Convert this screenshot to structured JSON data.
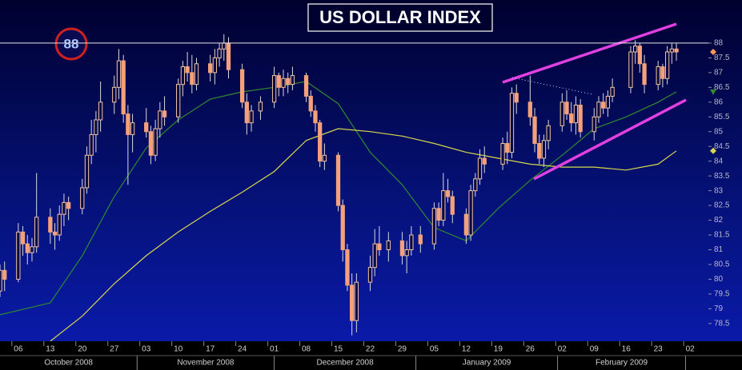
{
  "chart_data": {
    "type": "candlestick",
    "title": "US DOLLAR INDEX",
    "annotation": "88",
    "reference_line": 88,
    "up_color": "#f3c4a4",
    "down_color": "#f4a07a",
    "wick_color": "#d8d8d8",
    "last_marker_color": "#ff9955",
    "x": [
      "2008-10-01",
      "2008-10-02",
      "2008-10-03",
      "2008-10-06",
      "2008-10-07",
      "2008-10-08",
      "2008-10-09",
      "2008-10-10",
      "2008-10-13",
      "2008-10-14",
      "2008-10-15",
      "2008-10-16",
      "2008-10-17",
      "2008-10-20",
      "2008-10-21",
      "2008-10-22",
      "2008-10-23",
      "2008-10-24",
      "2008-10-27",
      "2008-10-28",
      "2008-10-29",
      "2008-10-30",
      "2008-10-31",
      "2008-11-03",
      "2008-11-04",
      "2008-11-05",
      "2008-11-06",
      "2008-11-07",
      "2008-11-10",
      "2008-11-11",
      "2008-11-12",
      "2008-11-13",
      "2008-11-14",
      "2008-11-17",
      "2008-11-18",
      "2008-11-19",
      "2008-11-20",
      "2008-11-21",
      "2008-11-24",
      "2008-11-25",
      "2008-11-26",
      "2008-11-28",
      "2008-12-01",
      "2008-12-02",
      "2008-12-03",
      "2008-12-04",
      "2008-12-05",
      "2008-12-08",
      "2008-12-09",
      "2008-12-10",
      "2008-12-11",
      "2008-12-12",
      "2008-12-15",
      "2008-12-16",
      "2008-12-17",
      "2008-12-18",
      "2008-12-19",
      "2008-12-22",
      "2008-12-23",
      "2008-12-24",
      "2008-12-26",
      "2008-12-29",
      "2008-12-30",
      "2008-12-31",
      "2009-01-02",
      "2009-01-05",
      "2009-01-06",
      "2009-01-07",
      "2009-01-08",
      "2009-01-09",
      "2009-01-12",
      "2009-01-13",
      "2009-01-14",
      "2009-01-15",
      "2009-01-16",
      "2009-01-20",
      "2009-01-21",
      "2009-01-22",
      "2009-01-23",
      "2009-01-26",
      "2009-01-27",
      "2009-01-28",
      "2009-01-29",
      "2009-01-30",
      "2009-02-02",
      "2009-02-03",
      "2009-02-04",
      "2009-02-05",
      "2009-02-06",
      "2009-02-09",
      "2009-02-10",
      "2009-02-11",
      "2009-02-12",
      "2009-02-13",
      "2009-02-17",
      "2009-02-18",
      "2009-02-19",
      "2009-02-20",
      "2009-02-23",
      "2009-02-24",
      "2009-02-25",
      "2009-02-26",
      "2009-02-27"
    ],
    "open": [
      79.2,
      79.6,
      80.3,
      80.0,
      81.6,
      81.2,
      80.9,
      81.1,
      82.1,
      81.6,
      81.5,
      82.2,
      82.6,
      82.4,
      83.1,
      84.2,
      84.9,
      85.4,
      86.0,
      86.5,
      87.4,
      85.6,
      84.9,
      85.3,
      85.0,
      84.2,
      85.1,
      85.7,
      85.5,
      86.6,
      87.2,
      87.0,
      86.6,
      87.3,
      87.0,
      87.5,
      87.8,
      88.0,
      87.1,
      86.0,
      85.3,
      85.7,
      86.0,
      86.9,
      86.5,
      86.8,
      86.6,
      86.9,
      86.2,
      85.7,
      85.3,
      84.0,
      84.2,
      82.5,
      81.0,
      79.8,
      78.6,
      79.9,
      80.4,
      81.2,
      81.0,
      81.3,
      80.8,
      81.0,
      81.5,
      81.2,
      82.4,
      82.0,
      83.0,
      82.8,
      82.2,
      81.5,
      83.0,
      83.4,
      84.1,
      83.9,
      84.6,
      84.3,
      86.3,
      86.0,
      85.5,
      84.6,
      84.1,
      84.7,
      85.2,
      86.0,
      85.6,
      85.3,
      85.9,
      85.0,
      85.5,
      86.0,
      85.8,
      86.2,
      86.5,
      87.7,
      87.9,
      87.3,
      86.6,
      87.2,
      86.8,
      87.7,
      87.8
    ],
    "high": [
      79.9,
      80.5,
      80.6,
      81.9,
      81.8,
      81.5,
      81.4,
      83.6,
      82.4,
      81.9,
      82.5,
      82.9,
      82.8,
      83.4,
      84.5,
      85.4,
      85.7,
      86.7,
      86.9,
      87.8,
      87.6,
      85.9,
      85.6,
      85.8,
      85.2,
      85.4,
      86.0,
      86.2,
      86.8,
      87.4,
      87.7,
      87.6,
      87.5,
      87.6,
      87.8,
      88.0,
      88.3,
      88.2,
      87.3,
      86.3,
      85.9,
      86.2,
      87.2,
      87.0,
      87.1,
      87.0,
      87.2,
      87.0,
      86.4,
      85.9,
      85.4,
      84.6,
      84.3,
      82.7,
      81.2,
      80.2,
      80.2,
      80.8,
      81.7,
      81.8,
      81.6,
      81.6,
      81.3,
      81.8,
      81.8,
      82.6,
      82.6,
      83.6,
      83.4,
      83.0,
      82.4,
      83.2,
      83.6,
      84.4,
      84.5,
      84.8,
      85.0,
      86.5,
      86.6,
      86.9,
      85.8,
      84.9,
      84.9,
      85.4,
      86.3,
      86.4,
      86.0,
      86.2,
      86.1,
      85.8,
      86.2,
      86.3,
      86.4,
      86.8,
      87.9,
      88.1,
      88.0,
      87.6,
      87.4,
      87.3,
      87.9,
      88.0,
      88.0
    ],
    "low": [
      79.0,
      79.4,
      79.6,
      79.9,
      80.8,
      80.5,
      80.6,
      80.9,
      81.2,
      81.0,
      81.3,
      81.8,
      82.0,
      82.2,
      82.9,
      83.9,
      84.3,
      85.0,
      85.6,
      86.1,
      85.3,
      83.2,
      84.3,
      84.8,
      83.9,
      84.0,
      84.8,
      85.2,
      85.3,
      86.2,
      86.7,
      86.3,
      86.4,
      86.7,
      86.6,
      87.2,
      87.4,
      86.8,
      85.8,
      84.9,
      85.0,
      85.4,
      85.8,
      86.2,
      86.2,
      86.3,
      86.4,
      86.0,
      85.5,
      85.0,
      83.8,
      83.7,
      82.3,
      80.6,
      79.6,
      78.1,
      78.2,
      79.6,
      80.1,
      80.8,
      80.6,
      80.5,
      80.2,
      80.8,
      80.9,
      81.0,
      81.8,
      81.8,
      82.6,
      81.9,
      81.2,
      81.3,
      82.8,
      83.2,
      83.6,
      83.7,
      83.9,
      84.1,
      85.6,
      85.2,
      84.3,
      83.9,
      83.8,
      84.4,
      85.0,
      85.4,
      85.0,
      84.9,
      84.8,
      84.7,
      85.3,
      85.6,
      85.5,
      86.0,
      86.3,
      87.3,
      87.0,
      86.3,
      86.4,
      86.5,
      86.6,
      87.3,
      87.4
    ],
    "close": [
      79.6,
      80.3,
      80.0,
      81.6,
      81.2,
      80.9,
      81.1,
      82.1,
      81.6,
      81.5,
      82.2,
      82.6,
      82.4,
      83.1,
      84.2,
      84.9,
      85.4,
      86.0,
      86.5,
      87.4,
      85.6,
      84.9,
      85.3,
      85.0,
      84.2,
      85.1,
      85.7,
      85.5,
      86.6,
      87.2,
      87.0,
      86.6,
      87.3,
      87.0,
      87.5,
      87.8,
      88.0,
      87.1,
      86.0,
      85.3,
      85.7,
      86.0,
      86.9,
      86.5,
      86.8,
      86.6,
      86.9,
      86.2,
      85.7,
      85.3,
      84.0,
      84.2,
      82.5,
      81.0,
      79.8,
      78.6,
      79.9,
      80.4,
      81.2,
      81.0,
      81.3,
      80.8,
      81.0,
      81.5,
      81.2,
      82.4,
      82.0,
      83.0,
      82.8,
      82.2,
      81.5,
      83.0,
      83.4,
      84.1,
      83.9,
      84.6,
      84.3,
      86.3,
      86.0,
      85.5,
      84.6,
      84.1,
      84.7,
      85.2,
      86.0,
      85.6,
      85.3,
      85.9,
      85.0,
      85.5,
      86.0,
      85.8,
      86.2,
      86.5,
      87.7,
      87.9,
      87.3,
      86.6,
      87.2,
      86.8,
      87.7,
      87.8,
      87.7
    ],
    "lines": [
      {
        "color": "#2e8b2e",
        "x": [
          "2008-10-01",
          "2008-10-13",
          "2008-10-20",
          "2008-10-27",
          "2008-11-03",
          "2008-11-10",
          "2008-11-17",
          "2008-11-24",
          "2008-12-01",
          "2008-12-08",
          "2008-12-15",
          "2008-12-22",
          "2008-12-29",
          "2009-01-05",
          "2009-01-12",
          "2009-01-19",
          "2009-01-26",
          "2009-02-02",
          "2009-02-09",
          "2009-02-16",
          "2009-02-23",
          "2009-02-27"
        ],
        "values": [
          78.76,
          79.2,
          80.8,
          82.8,
          84.45,
          85.4,
          86.1,
          86.35,
          86.5,
          86.7,
          85.95,
          84.3,
          83.2,
          81.75,
          81.3,
          82.4,
          83.35,
          84.2,
          85.1,
          85.5,
          86.0,
          86.35
        ]
      },
      {
        "color": "#d8d84a",
        "x": [
          "2008-10-13",
          "2008-10-20",
          "2008-10-27",
          "2008-11-03",
          "2008-11-10",
          "2008-11-17",
          "2008-11-24",
          "2008-12-01",
          "2008-12-08",
          "2008-12-15",
          "2008-12-22",
          "2008-12-29",
          "2009-01-05",
          "2009-01-12",
          "2009-01-19",
          "2009-01-26",
          "2009-02-02",
          "2009-02-09",
          "2009-02-16",
          "2009-02-23",
          "2009-02-27"
        ],
        "values": [
          77.9,
          78.75,
          79.85,
          80.8,
          81.6,
          82.3,
          82.95,
          83.65,
          84.7,
          85.1,
          85.0,
          84.85,
          84.6,
          84.3,
          84.1,
          83.9,
          83.8,
          83.8,
          83.7,
          83.9,
          84.35
        ]
      }
    ],
    "xlim": [
      "2008-10-02",
      "2009-03-06"
    ],
    "ylim": [
      77.9,
      89.46
    ],
    "yticks": [
      78.5,
      79,
      79.5,
      80,
      80.5,
      81,
      81.5,
      82,
      82.5,
      83,
      83.5,
      84,
      84.5,
      85,
      85.5,
      86,
      86.5,
      87,
      87.5,
      88
    ],
    "xticks": [
      {
        "value": "2008-10-06",
        "label": "06"
      },
      {
        "value": "2008-10-13",
        "label": "13"
      },
      {
        "value": "2008-10-20",
        "label": "20"
      },
      {
        "value": "2008-10-27",
        "label": "27"
      },
      {
        "value": "2008-11-03",
        "label": "03"
      },
      {
        "value": "2008-11-10",
        "label": "10"
      },
      {
        "value": "2008-11-17",
        "label": "17"
      },
      {
        "value": "2008-11-24",
        "label": "24"
      },
      {
        "value": "2008-12-01",
        "label": "01"
      },
      {
        "value": "2008-12-08",
        "label": "08"
      },
      {
        "value": "2008-12-15",
        "label": "15"
      },
      {
        "value": "2008-12-22",
        "label": "22"
      },
      {
        "value": "2008-12-29",
        "label": "29"
      },
      {
        "value": "2009-01-05",
        "label": "05"
      },
      {
        "value": "2009-01-12",
        "label": "12"
      },
      {
        "value": "2009-01-19",
        "label": "19"
      },
      {
        "value": "2009-01-26",
        "label": "26"
      },
      {
        "value": "2009-02-02",
        "label": "02"
      },
      {
        "value": "2009-02-09",
        "label": "09"
      },
      {
        "value": "2009-02-16",
        "label": "16"
      },
      {
        "value": "2009-02-23",
        "label": "23"
      },
      {
        "value": "2009-03-02",
        "label": "02"
      }
    ],
    "months": [
      {
        "value": "2008-10",
        "label": "October 2008"
      },
      {
        "value": "2008-11",
        "label": "November 2008"
      },
      {
        "value": "2008-12",
        "label": "December 2008"
      },
      {
        "value": "2009-01",
        "label": "January 2009"
      },
      {
        "value": "2009-02",
        "label": "February 2009"
      }
    ]
  }
}
